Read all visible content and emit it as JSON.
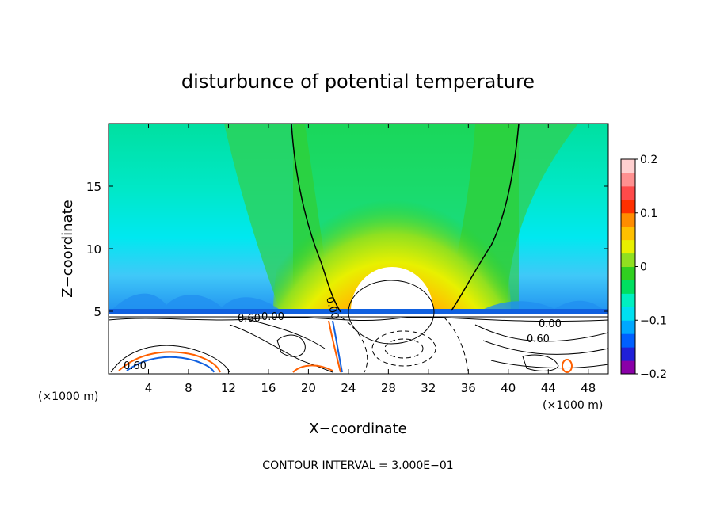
{
  "chart_data": {
    "type": "heatmap",
    "title": "disturbunce of potential temperature",
    "xlabel": "X−coordinate",
    "ylabel": "Z−coordinate",
    "x_unit_left": "(×1000 m)",
    "x_unit_right": "(×1000 m)",
    "xlim": [
      0,
      50
    ],
    "ylim": [
      0,
      20
    ],
    "x_ticks": [
      4,
      8,
      12,
      16,
      20,
      24,
      28,
      32,
      36,
      40,
      44,
      48
    ],
    "y_ticks": [
      5,
      10,
      15
    ],
    "colorbar": {
      "range": [
        -0.2,
        0.2
      ],
      "tick_values": [
        0.2,
        0.1,
        0,
        -0.1,
        -0.2
      ],
      "tick_labels": [
        "0.2",
        "0.1",
        "0",
        "−0.1",
        "−0.2"
      ],
      "colors": [
        "#8a00a8",
        "#2020d8",
        "#0060ff",
        "#00a8ff",
        "#00e0f0",
        "#00f0c0",
        "#00e060",
        "#30d020",
        "#90e020",
        "#e8f000",
        "#ffc000",
        "#ff8c00",
        "#ff3000",
        "#ff4a4a",
        "#ff9090",
        "#ffd0d0"
      ]
    },
    "contour_labels": [
      "0.00",
      "0.00",
      "0.00",
      "0.60",
      "0.60",
      "0.60"
    ],
    "annotation": "CONTOUR INTERVAL = 3.000E−01",
    "field_features": {
      "warm_anomaly_center": [
        29,
        6
      ],
      "warm_anomaly_max": 0.2,
      "inversion_height": 5.0,
      "background_anomaly": -0.05
    }
  }
}
